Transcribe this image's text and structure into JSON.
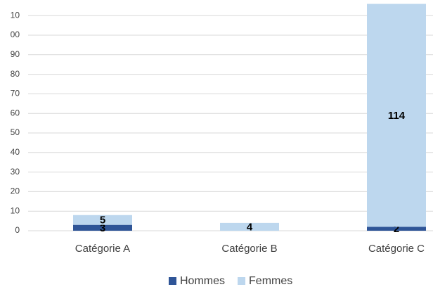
{
  "chart_data": {
    "type": "stacked_bar",
    "categories": [
      "Catégorie A",
      "Catégorie B",
      "Catégorie C"
    ],
    "series": [
      {
        "name": "Hommes",
        "color": "#2f5597",
        "values": [
          3,
          null,
          2
        ]
      },
      {
        "name": "Femmes",
        "color": "#bdd7ee",
        "values": [
          5,
          4,
          114
        ]
      }
    ],
    "ylim": [
      0,
      116
    ],
    "yticks": [
      0,
      10,
      20,
      30,
      40,
      50,
      60,
      70,
      80,
      90,
      {
        "value": 100,
        "label": "00"
      },
      {
        "value": 110,
        "label": "10"
      }
    ],
    "grid": true,
    "legend": "bottom"
  }
}
